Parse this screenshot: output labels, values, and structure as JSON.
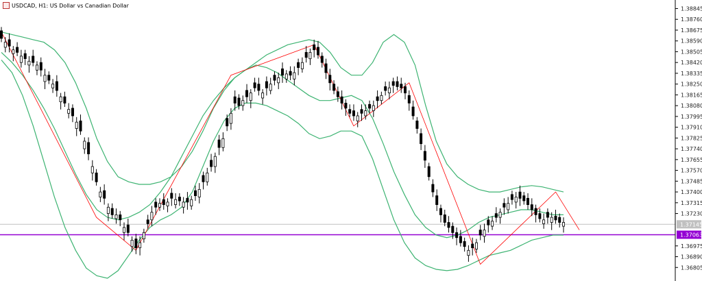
{
  "header": {
    "symbol_title": "USDCAD, H1:  US Dollar vs Canadian Dollar",
    "symbol_icon": "chart-type-icon"
  },
  "colors": {
    "bullish_body": "#ffffff",
    "bearish_body": "#000000",
    "candle_wick": "#000000",
    "bollinger": "#3cb371",
    "zigzag": "#ff0000",
    "middle_band_tail": "#4169e1",
    "price_level": "#9400d3",
    "bid_line": "#c0c0c0"
  },
  "chart_data": {
    "type": "candlestick",
    "title": "USDCAD, H1:  US Dollar vs Canadian Dollar",
    "ylim": [
      1.3672,
      1.3888
    ],
    "y_ticks": [
      "1.38845",
      "1.38760",
      "1.38675",
      "1.38590",
      "1.38505",
      "1.38420",
      "1.38335",
      "1.38250",
      "1.38165",
      "1.38080",
      "1.37995",
      "1.37910",
      "1.37825",
      "1.37740",
      "1.37655",
      "1.37570",
      "1.37485",
      "1.37400",
      "1.37315",
      "1.37230",
      "1.37145",
      "1.37063",
      "1.36975",
      "1.36890",
      "1.36805"
    ],
    "current_price": {
      "label": "1.37145",
      "value": 1.37145
    },
    "price_level": {
      "label": "1.37063",
      "value": 1.37063
    },
    "candles_close": [
      1.3861,
      1.3858,
      1.3855,
      1.3852,
      1.385,
      1.3847,
      1.3845,
      1.3843,
      1.3842,
      1.384,
      1.3836,
      1.3832,
      1.3828,
      1.3825,
      1.382,
      1.3815,
      1.381,
      1.3805,
      1.38,
      1.3795,
      1.3788,
      1.378,
      1.377,
      1.376,
      1.3748,
      1.374,
      1.3735,
      1.3728,
      1.3722,
      1.3722,
      1.3718,
      1.3712,
      1.3708,
      1.3702,
      1.3696,
      1.37,
      1.3708,
      1.3715,
      1.3724,
      1.3728,
      1.3731,
      1.373,
      1.3732,
      1.3735,
      1.3734,
      1.3733,
      1.3732,
      1.3732,
      1.3734,
      1.3737,
      1.3742,
      1.3748,
      1.3755,
      1.376,
      1.3768,
      1.3775,
      1.3782,
      1.3792,
      1.3802,
      1.381,
      1.3808,
      1.3812,
      1.3815,
      1.3818,
      1.3822,
      1.382,
      1.3818,
      1.3822,
      1.3825,
      1.3828,
      1.383,
      1.3832,
      1.3833,
      1.3832,
      1.3834,
      1.3838,
      1.3842,
      1.3846,
      1.385,
      1.3852,
      1.3848,
      1.3842,
      1.3834,
      1.3826,
      1.382,
      1.3815,
      1.381,
      1.3806,
      1.3802,
      1.38,
      1.38,
      1.3802,
      1.3804,
      1.3806,
      1.3808,
      1.3812,
      1.3816,
      1.382,
      1.3822,
      1.3824,
      1.3823,
      1.3822,
      1.3818,
      1.381,
      1.38,
      1.379,
      1.3778,
      1.3765,
      1.3752,
      1.374,
      1.373,
      1.3722,
      1.3716,
      1.3712,
      1.3708,
      1.3704,
      1.37,
      1.3697,
      1.3694,
      1.3696,
      1.37,
      1.3706,
      1.371,
      1.3714,
      1.3717,
      1.372,
      1.3724,
      1.3728,
      1.3731,
      1.3734,
      1.3736,
      1.3735,
      1.3733,
      1.373,
      1.3726,
      1.3722,
      1.3719,
      1.3718,
      1.372,
      1.372,
      1.3718,
      1.3716,
      1.3716
    ],
    "candles_open_offset": [
      0.0006,
      -0.0004,
      0.0005,
      -0.0003,
      0.0004,
      -0.0005,
      0.0004,
      -0.0003,
      0.0005,
      -0.0004,
      0.0006,
      -0.0005,
      0.0004,
      -0.0003,
      0.0007,
      -0.0004,
      0.0005,
      -0.0003,
      0.0006,
      -0.0005,
      0.0008,
      -0.0006,
      0.0009,
      -0.0005,
      0.0007,
      -0.0004,
      0.0006,
      -0.0005,
      0.0005,
      -0.0003,
      0.0004,
      -0.0004,
      0.0006,
      -0.0005,
      0.0007,
      -0.0004,
      -0.0005,
      0.0003,
      -0.0006,
      0.0004,
      -0.0003,
      0.0004,
      -0.0003,
      0.0004,
      -0.0004,
      0.0003,
      -0.0004,
      0.0003,
      -0.0005,
      0.0004,
      -0.0006,
      0.0005,
      -0.0007,
      0.0005,
      -0.0008,
      0.0006,
      -0.0007,
      0.0006,
      -0.0008,
      0.0005,
      0.0006,
      -0.0004,
      0.0005,
      -0.0006,
      0.0004,
      0.0005,
      -0.0004,
      0.0005,
      -0.0005,
      0.0004,
      -0.0004,
      0.0005,
      -0.0004,
      0.0003,
      -0.0005,
      0.0004,
      -0.0005,
      0.0004,
      -0.0005,
      0.0004,
      0.0006,
      0.0005,
      0.0007,
      0.0006,
      0.0005,
      0.0004,
      0.0005,
      0.0004,
      0.0003,
      0.0004,
      -0.0004,
      0.0003,
      -0.0004,
      0.0003,
      -0.0004,
      0.0003,
      -0.0004,
      0.0003,
      -0.0004,
      0.0003,
      0.0004,
      0.0003,
      0.0005,
      0.0006,
      0.0007,
      0.0006,
      0.0008,
      0.0007,
      0.0008,
      0.0006,
      0.0007,
      0.0005,
      0.0006,
      0.0004,
      0.0005,
      0.0004,
      0.0005,
      0.0004,
      -0.0004,
      0.0003,
      -0.0005,
      0.0004,
      -0.0005,
      0.0004,
      -0.0004,
      0.0003,
      -0.0004,
      0.0003,
      -0.0005,
      0.0004,
      -0.0004,
      0.0005,
      0.0004,
      0.0005,
      0.0004,
      0.0005,
      0.0004,
      -0.0003,
      0.0004,
      -0.0004,
      0.0003,
      0.0004,
      -0.0003
    ],
    "zigzag": [
      [
        0,
        1.3866
      ],
      [
        24,
        1.372
      ],
      [
        34,
        1.3694
      ],
      [
        58,
        1.3832
      ],
      [
        79,
        1.3856
      ],
      [
        89,
        1.3792
      ],
      [
        103,
        1.3826
      ],
      [
        121,
        1.3683
      ],
      [
        140,
        1.374
      ],
      [
        146,
        1.371
      ]
    ],
    "bollinger": {
      "upper": [
        1.3866,
        1.3864,
        1.3862,
        1.386,
        1.3858,
        1.3852,
        1.3842,
        1.3826,
        1.3806,
        1.3782,
        1.3764,
        1.3752,
        1.3748,
        1.3746,
        1.3746,
        1.3748,
        1.3752,
        1.376,
        1.3772,
        1.3788,
        1.3806,
        1.382,
        1.383,
        1.3836,
        1.3842,
        1.3848,
        1.3852,
        1.3856,
        1.3858,
        1.386,
        1.3858,
        1.385,
        1.3838,
        1.3832,
        1.3832,
        1.3842,
        1.3858,
        1.3864,
        1.3858,
        1.384,
        1.3808,
        1.378,
        1.3762,
        1.3752,
        1.3746,
        1.3742,
        1.374,
        1.374,
        1.3742,
        1.3744,
        1.3745,
        1.3744,
        1.3742,
        1.374
      ],
      "middle": [
        1.385,
        1.3842,
        1.3832,
        1.382,
        1.3806,
        1.379,
        1.3772,
        1.3754,
        1.3738,
        1.3726,
        1.372,
        1.3718,
        1.372,
        1.3724,
        1.373,
        1.374,
        1.3752,
        1.3768,
        1.3784,
        1.38,
        1.3812,
        1.3822,
        1.383,
        1.3836,
        1.384,
        1.3838,
        1.3834,
        1.3828,
        1.3822,
        1.3816,
        1.3812,
        1.3812,
        1.3814,
        1.3816,
        1.3812,
        1.3798,
        1.3778,
        1.3756,
        1.3738,
        1.3722,
        1.3712,
        1.3706,
        1.3704,
        1.3706,
        1.371,
        1.3716,
        1.372,
        1.3722,
        1.3724,
        1.3726,
        1.3726,
        1.3724,
        1.3722,
        1.3722
      ],
      "lower": [
        1.3844,
        1.3834,
        1.3816,
        1.3792,
        1.3764,
        1.3736,
        1.3712,
        1.3694,
        1.368,
        1.3674,
        1.3672,
        1.3678,
        1.369,
        1.3702,
        1.3712,
        1.3718,
        1.3722,
        1.3728,
        1.374,
        1.376,
        1.378,
        1.3796,
        1.3806,
        1.381,
        1.381,
        1.3808,
        1.3804,
        1.38,
        1.3794,
        1.3786,
        1.3782,
        1.3784,
        1.3788,
        1.3788,
        1.3784,
        1.3766,
        1.3742,
        1.3718,
        1.37,
        1.3688,
        1.3682,
        1.3679,
        1.3678,
        1.3679,
        1.3682,
        1.3686,
        1.369,
        1.3692,
        1.3694,
        1.3698,
        1.3702,
        1.3704,
        1.3706,
        1.3706
      ]
    }
  }
}
